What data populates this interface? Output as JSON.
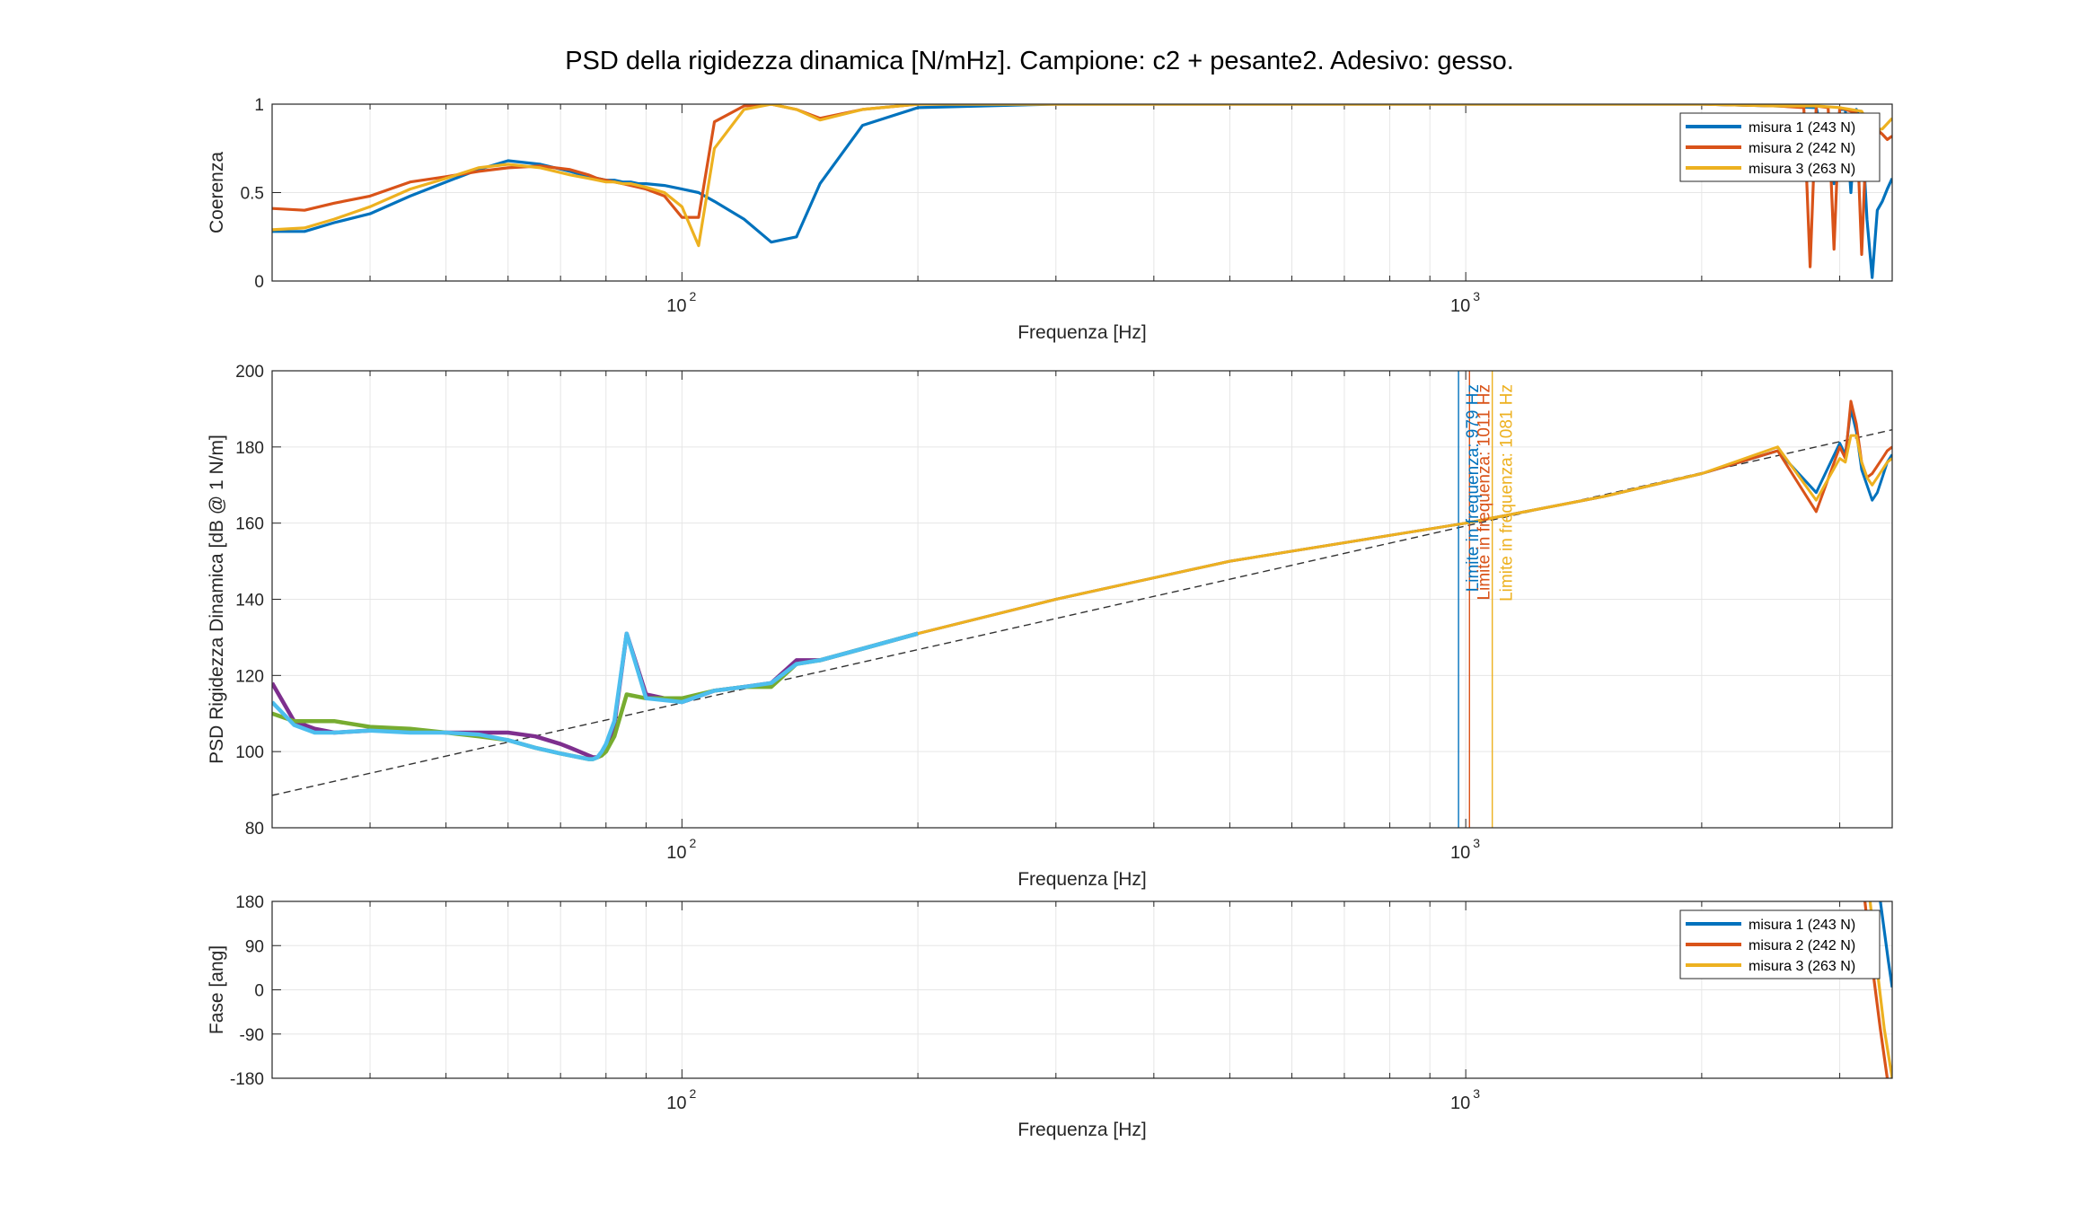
{
  "title": "PSD della rigidezza dinamica [N/mHz]. Campione: c2 + pesante2. Adesivo: gesso.",
  "colors": {
    "blue": "#0072BD",
    "orange": "#D95319",
    "yellow": "#EDB120",
    "purple": "#7E2F8E",
    "green": "#77AC30",
    "cyan": "#4DBEEE",
    "dashed": "#333333"
  },
  "chart_data": [
    {
      "type": "line",
      "panel": "coherence",
      "xlabel": "Frequenza [Hz]",
      "ylabel": "Coerenza",
      "xscale": "log",
      "xlim": [
        30,
        3500
      ],
      "ylim": [
        0,
        1
      ],
      "yticks": [
        0,
        0.5,
        1
      ],
      "yticklabels": [
        "0",
        "0.5",
        "1"
      ],
      "xticklabels": [
        {
          "base": "10",
          "exp": "2",
          "value": 100
        },
        {
          "base": "10",
          "exp": "3",
          "value": 1000
        }
      ],
      "grid": true,
      "legend_position": "top-right",
      "series": [
        {
          "name": "misura 1 (243 N)",
          "color": "#0072BD",
          "x": [
            30,
            33,
            36,
            40,
            45,
            50,
            55,
            60,
            66,
            72,
            76,
            78,
            80,
            82,
            84,
            86,
            88,
            90,
            95,
            100,
            105,
            110,
            120,
            130,
            140,
            150,
            170,
            200,
            300,
            500,
            1000,
            2000,
            2500,
            2800,
            2950,
            3000,
            3050,
            3100,
            3150,
            3200,
            3250,
            3300,
            3350,
            3400,
            3450,
            3500
          ],
          "y": [
            0.28,
            0.28,
            0.33,
            0.38,
            0.48,
            0.56,
            0.63,
            0.68,
            0.66,
            0.62,
            0.59,
            0.58,
            0.57,
            0.57,
            0.56,
            0.56,
            0.55,
            0.55,
            0.54,
            0.52,
            0.5,
            0.45,
            0.35,
            0.22,
            0.25,
            0.55,
            0.88,
            0.98,
            1.0,
            1.0,
            1.0,
            1.0,
            0.99,
            0.98,
            0.55,
            0.97,
            0.97,
            0.5,
            0.97,
            0.9,
            0.35,
            0.02,
            0.4,
            0.45,
            0.52,
            0.58
          ]
        },
        {
          "name": "misura 2 (242 N)",
          "color": "#D95319",
          "x": [
            30,
            33,
            36,
            40,
            45,
            50,
            55,
            60,
            66,
            72,
            76,
            78,
            80,
            82,
            84,
            86,
            88,
            90,
            95,
            100,
            105,
            110,
            120,
            130,
            140,
            150,
            170,
            200,
            300,
            500,
            1000,
            2000,
            2500,
            2700,
            2750,
            2800,
            2900,
            2950,
            3000,
            3050,
            3150,
            3200,
            3250,
            3300,
            3400,
            3450,
            3500
          ],
          "y": [
            0.41,
            0.4,
            0.44,
            0.48,
            0.56,
            0.59,
            0.62,
            0.64,
            0.65,
            0.63,
            0.6,
            0.58,
            0.57,
            0.56,
            0.55,
            0.54,
            0.53,
            0.52,
            0.48,
            0.36,
            0.36,
            0.9,
            0.99,
            1.0,
            0.97,
            0.92,
            0.97,
            1.0,
            1.0,
            1.0,
            1.0,
            1.0,
            0.99,
            0.98,
            0.08,
            0.99,
            0.98,
            0.18,
            0.98,
            0.97,
            0.95,
            0.15,
            0.9,
            0.88,
            0.83,
            0.8,
            0.82
          ]
        },
        {
          "name": "misura 3 (263 N)",
          "color": "#EDB120",
          "x": [
            30,
            33,
            36,
            40,
            45,
            50,
            55,
            60,
            66,
            72,
            76,
            78,
            80,
            82,
            84,
            86,
            88,
            90,
            95,
            100,
            105,
            110,
            120,
            130,
            140,
            150,
            170,
            200,
            300,
            500,
            1000,
            2000,
            2500,
            2800,
            3000,
            3100,
            3200,
            3300,
            3400,
            3500
          ],
          "y": [
            0.29,
            0.3,
            0.35,
            0.42,
            0.52,
            0.58,
            0.64,
            0.66,
            0.64,
            0.6,
            0.58,
            0.57,
            0.56,
            0.56,
            0.55,
            0.55,
            0.54,
            0.53,
            0.5,
            0.42,
            0.2,
            0.75,
            0.97,
            1.0,
            0.97,
            0.91,
            0.97,
            1.0,
            1.0,
            1.0,
            1.0,
            1.0,
            0.99,
            0.99,
            0.98,
            0.97,
            0.96,
            0.85,
            0.86,
            0.92
          ]
        }
      ]
    },
    {
      "type": "line",
      "panel": "psd",
      "xlabel": "Frequenza [Hz]",
      "ylabel": "PSD Rigidezza Dinamica [dB @ 1 N/m]",
      "xscale": "log",
      "xlim": [
        30,
        3500
      ],
      "ylim": [
        80,
        200
      ],
      "yticks": [
        80,
        100,
        120,
        140,
        160,
        180,
        200
      ],
      "xticklabels": [
        {
          "base": "10",
          "exp": "2",
          "value": 100
        },
        {
          "base": "10",
          "exp": "3",
          "value": 1000
        }
      ],
      "grid": true,
      "reference_line": {
        "style": "dashed",
        "x": [
          30,
          3500
        ],
        "y": [
          88.5,
          184.5
        ]
      },
      "vertical_limits": [
        {
          "x": 979,
          "label": "Limite in frequenza: 979 Hz",
          "color": "#0072BD"
        },
        {
          "x": 1011,
          "label": "Limite in frequenza: 1011 Hz",
          "color": "#D95319"
        },
        {
          "x": 1081,
          "label": "Limite in frequenza: 1081 Hz",
          "color": "#EDB120"
        }
      ],
      "low_freq_series": [
        {
          "color": "#7E2F8E",
          "x": [
            30,
            32,
            34,
            36,
            40,
            45,
            50,
            55,
            60,
            65,
            70,
            72,
            74,
            76,
            77,
            78,
            79,
            80,
            82,
            85,
            90,
            100,
            110,
            120,
            130,
            140,
            150,
            170,
            200
          ],
          "y": [
            118,
            108,
            106,
            105,
            105.5,
            105.5,
            105,
            105,
            105,
            104,
            102,
            101,
            100,
            99,
            98.5,
            98.5,
            99,
            101,
            107,
            131,
            115,
            113,
            116,
            117,
            118,
            124,
            124,
            127,
            131
          ]
        },
        {
          "color": "#77AC30",
          "x": [
            30,
            32,
            34,
            36,
            40,
            45,
            50,
            55,
            60,
            65,
            70,
            72,
            74,
            76,
            77,
            78,
            79,
            80,
            82,
            85,
            90,
            100,
            110,
            120,
            130,
            140,
            150,
            170,
            200
          ],
          "y": [
            110,
            108,
            108,
            108,
            106.5,
            106,
            105,
            104,
            103,
            101,
            99.5,
            99,
            98.5,
            98,
            98,
            98.5,
            99,
            100,
            104,
            115,
            114,
            114,
            116,
            117,
            117,
            123,
            124,
            127,
            131
          ]
        },
        {
          "color": "#4DBEEE",
          "x": [
            30,
            32,
            34,
            36,
            40,
            45,
            50,
            55,
            60,
            65,
            70,
            72,
            74,
            76,
            77,
            78,
            79,
            80,
            82,
            85,
            90,
            100,
            110,
            120,
            130,
            140,
            150,
            170,
            200
          ],
          "y": [
            113,
            107,
            105,
            105,
            105.5,
            105,
            105,
            104.5,
            103,
            101,
            99.5,
            99,
            98.5,
            98,
            98,
            98.5,
            100,
            102,
            108,
            131,
            114,
            113,
            116,
            117,
            118,
            123,
            124,
            127,
            131
          ]
        }
      ],
      "series": [
        {
          "name": "misura 1 (243 N)",
          "color": "#0072BD",
          "x": [
            200,
            300,
            500,
            1000,
            1500,
            2000,
            2500,
            2800,
            3000,
            3050,
            3100,
            3150,
            3200,
            3250,
            3300,
            3350,
            3400,
            3450,
            3500
          ],
          "y": [
            131,
            140,
            150,
            160,
            167,
            173,
            179,
            168,
            181,
            178,
            190,
            184,
            174,
            170,
            166,
            168,
            172,
            176,
            178
          ]
        },
        {
          "name": "misura 2 (242 N)",
          "color": "#D95319",
          "x": [
            200,
            300,
            500,
            1000,
            1500,
            2000,
            2500,
            2800,
            3000,
            3050,
            3100,
            3150,
            3200,
            3250,
            3300,
            3350,
            3400,
            3450,
            3500
          ],
          "y": [
            131,
            140,
            150,
            160,
            167,
            173,
            179,
            163,
            180,
            177,
            192,
            186,
            176,
            172,
            173,
            175,
            177,
            179,
            180
          ]
        },
        {
          "name": "misura 3 (263 N)",
          "color": "#EDB120",
          "x": [
            200,
            300,
            500,
            1000,
            1500,
            2000,
            2500,
            2800,
            3000,
            3050,
            3100,
            3150,
            3200,
            3250,
            3300,
            3350,
            3400,
            3450,
            3500
          ],
          "y": [
            131,
            140,
            150,
            160,
            167,
            173,
            180,
            166,
            177,
            176,
            183,
            183,
            176,
            172,
            170,
            172,
            174,
            176,
            177
          ]
        }
      ]
    },
    {
      "type": "line",
      "panel": "phase",
      "xlabel": "Frequenza [Hz]",
      "ylabel": "Fase [ang]",
      "xscale": "log",
      "xlim": [
        30,
        3500
      ],
      "ylim": [
        -180,
        180
      ],
      "yticks": [
        -180,
        -90,
        0,
        90,
        180
      ],
      "xticklabels": [
        {
          "base": "10",
          "exp": "2",
          "value": 100
        },
        {
          "base": "10",
          "exp": "3",
          "value": 1000
        }
      ],
      "grid": true,
      "legend_position": "top-right",
      "series": [
        {
          "name": "misura 1 (243 N)",
          "color": "#0072BD",
          "x": [
            3380,
            3420,
            3460,
            3500
          ],
          "y": [
            180,
            120,
            60,
            5
          ]
        },
        {
          "name": "misura 2 (242 N)",
          "color": "#D95319",
          "x": [
            3230,
            3300,
            3380,
            3450
          ],
          "y": [
            180,
            50,
            -80,
            -180
          ]
        },
        {
          "name": "misura 3 (263 N)",
          "color": "#EDB120",
          "x": [
            3280,
            3350,
            3420,
            3500
          ],
          "y": [
            180,
            40,
            -80,
            -180
          ]
        }
      ]
    }
  ]
}
